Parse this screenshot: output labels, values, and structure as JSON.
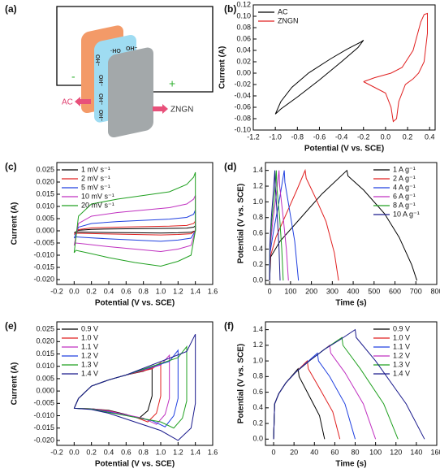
{
  "diagram": {
    "label": "(a)",
    "negative": "-",
    "positive": "+",
    "left_electrode": "AC",
    "right_electrode": "ZNGN",
    "ions": [
      "OH⁻",
      "·HO",
      "OH⁻",
      "OH⁻",
      "OH⁻",
      "OH⁻"
    ]
  },
  "chart_data": [
    {
      "type": "line",
      "label": "(b)",
      "xlabel": "Potential (V vs. SCE)",
      "ylabel": "Current (A)",
      "legend": "upper left",
      "xlim": [
        -1.2,
        0.45
      ],
      "ylim": [
        -0.1,
        0.12
      ],
      "xticks": [
        -1.2,
        {
          "value": -1,
          "label": "-1.0"
        },
        -0.8,
        -0.6,
        -0.4,
        -0.2,
        {
          "value": 0,
          "label": "0.0"
        },
        0.2,
        0.4
      ],
      "yticks": [
        {
          "value": -0.1,
          "label": "-0.10"
        },
        -0.08,
        -0.06,
        -0.04,
        -0.02,
        {
          "value": 0,
          "label": "0.00"
        },
        0.02,
        0.04,
        0.06,
        0.08,
        {
          "value": 0.1,
          "label": "0.10"
        },
        0.12
      ],
      "series": [
        {
          "name": "AC",
          "color": "#000000",
          "x": [
            -1.0,
            -0.95,
            -0.85,
            -0.7,
            -0.5,
            -0.35,
            -0.22,
            -0.2,
            -0.25,
            -0.4,
            -0.6,
            -0.8,
            -0.95,
            -1.0
          ],
          "values": [
            -0.072,
            -0.05,
            -0.025,
            0.0,
            0.025,
            0.042,
            0.055,
            0.058,
            0.045,
            0.02,
            -0.012,
            -0.042,
            -0.063,
            -0.072
          ]
        },
        {
          "name": "ZNGN",
          "color": "#e02020",
          "x": [
            -0.2,
            -0.1,
            0.05,
            0.15,
            0.25,
            0.32,
            0.35,
            0.38,
            0.38,
            0.35,
            0.3,
            0.25,
            0.18,
            0.12,
            0.1,
            0.07,
            0.05,
            0.0,
            -0.1,
            -0.2
          ],
          "values": [
            -0.015,
            -0.008,
            0.0,
            0.01,
            0.04,
            0.09,
            0.103,
            0.105,
            0.07,
            0.02,
            0.0,
            -0.01,
            -0.02,
            -0.05,
            -0.08,
            -0.085,
            -0.06,
            -0.035,
            -0.025,
            -0.015
          ]
        }
      ]
    },
    {
      "type": "line",
      "label": "(c)",
      "xlabel": "Potential (V vs. SCE)",
      "ylabel": "Current (A)",
      "legend": "upper left",
      "xlim": [
        -0.2,
        1.6
      ],
      "ylim": [
        -0.022,
        0.028
      ],
      "xticks": [
        -0.2,
        {
          "value": 0,
          "label": "0.0"
        },
        0.2,
        0.4,
        0.6,
        0.8,
        {
          "value": 1,
          "label": "1.0"
        },
        1.2,
        1.4,
        1.6
      ],
      "yticks": [
        {
          "value": -0.02,
          "label": "-0.020"
        },
        -0.015,
        {
          "value": -0.01,
          "label": "-0.010"
        },
        -0.005,
        {
          "value": 0,
          "label": "0.000"
        },
        0.005,
        {
          "value": 0.01,
          "label": "0.010"
        },
        0.015,
        {
          "value": 0.02,
          "label": "0.020"
        },
        0.025
      ],
      "series": [
        {
          "name": "1  mV s⁻¹",
          "color": "#000000",
          "x": [
            0,
            0.05,
            0.2,
            0.5,
            0.8,
            1.1,
            1.3,
            1.38,
            1.4,
            1.4,
            1.35,
            1.2,
            1.0,
            0.7,
            0.4,
            0.15,
            0.02,
            0
          ],
          "values": [
            -0.0008,
            0.0002,
            0.0006,
            0.0008,
            0.0009,
            0.001,
            0.0011,
            0.0015,
            0.002,
            0,
            -0.0006,
            -0.0008,
            -0.0009,
            -0.0008,
            -0.0007,
            -0.0006,
            -0.0005,
            -0.0008
          ]
        },
        {
          "name": "2  mV s⁻¹",
          "color": "#e02020",
          "x": [
            0,
            0.05,
            0.2,
            0.5,
            0.8,
            1.1,
            1.3,
            1.38,
            1.4,
            1.4,
            1.35,
            1.2,
            1.0,
            0.7,
            0.4,
            0.15,
            0.02,
            0
          ],
          "values": [
            -0.0015,
            0.0005,
            0.0012,
            0.0015,
            0.0017,
            0.0019,
            0.0022,
            0.003,
            0.004,
            0,
            -0.0012,
            -0.0015,
            -0.0017,
            -0.0015,
            -0.0013,
            -0.0011,
            -0.001,
            -0.0015
          ]
        },
        {
          "name": "5  mV s⁻¹",
          "color": "#2040e0",
          "x": [
            0,
            0.05,
            0.2,
            0.5,
            0.8,
            1.1,
            1.3,
            1.38,
            1.4,
            1.4,
            1.35,
            1.2,
            1.0,
            0.7,
            0.4,
            0.15,
            0.02,
            0
          ],
          "values": [
            -0.003,
            0.0015,
            0.003,
            0.0038,
            0.0043,
            0.0048,
            0.0055,
            0.0068,
            0.0085,
            0,
            -0.003,
            -0.0038,
            -0.0043,
            -0.0038,
            -0.0033,
            -0.0028,
            -0.0025,
            -0.003
          ]
        },
        {
          "name": "10  mV s⁻¹",
          "color": "#c030c0",
          "x": [
            0,
            0.05,
            0.2,
            0.5,
            0.8,
            1.1,
            1.3,
            1.38,
            1.4,
            1.4,
            1.35,
            1.2,
            1.0,
            0.7,
            0.4,
            0.15,
            0.02,
            0
          ],
          "values": [
            -0.006,
            0.003,
            0.006,
            0.0075,
            0.0085,
            0.0095,
            0.011,
            0.013,
            0.0145,
            0,
            -0.006,
            -0.0075,
            -0.0085,
            -0.0075,
            -0.0065,
            -0.0055,
            -0.005,
            -0.006
          ]
        },
        {
          "name": "20  mV s⁻¹",
          "color": "#20a020",
          "x": [
            0,
            0.05,
            0.2,
            0.5,
            0.8,
            1.1,
            1.3,
            1.38,
            1.4,
            1.4,
            1.35,
            1.2,
            1.0,
            0.7,
            0.4,
            0.15,
            0.02,
            0
          ],
          "values": [
            -0.009,
            0.006,
            0.011,
            0.013,
            0.0145,
            0.016,
            0.019,
            0.022,
            0.024,
            0,
            -0.01,
            -0.0125,
            -0.0145,
            -0.013,
            -0.011,
            -0.009,
            -0.008,
            -0.009
          ]
        }
      ]
    },
    {
      "type": "line",
      "label": "(d)",
      "xlabel": "Time (s)",
      "ylabel": "Potential (V vs. SCE)",
      "legend": "upper right",
      "xlim": [
        -20,
        800
      ],
      "ylim": [
        -0.05,
        1.5
      ],
      "xticks": [
        0,
        100,
        200,
        300,
        400,
        500,
        600,
        700,
        800
      ],
      "yticks": [
        {
          "value": 0,
          "label": "0.0"
        },
        0.2,
        0.4,
        0.6,
        0.8,
        {
          "value": 1,
          "label": "1.0"
        },
        1.2,
        1.4
      ],
      "series": [
        {
          "name": "1 A g⁻¹",
          "color": "#000000",
          "x": [
            0,
            5,
            50,
            150,
            250,
            370,
            375,
            450,
            550,
            620,
            680,
            705
          ],
          "values": [
            0,
            0.3,
            0.5,
            0.8,
            1.1,
            1.4,
            1.33,
            1.15,
            0.85,
            0.55,
            0.2,
            0
          ]
        },
        {
          "name": "2 A g⁻¹",
          "color": "#e02020",
          "x": [
            0,
            3,
            30,
            80,
            130,
            170,
            175,
            220,
            270,
            310,
            330
          ],
          "values": [
            0,
            0.3,
            0.55,
            0.85,
            1.15,
            1.4,
            1.3,
            1.05,
            0.75,
            0.35,
            0
          ]
        },
        {
          "name": "4 A g⁻¹",
          "color": "#2040e0",
          "x": [
            0,
            2,
            20,
            45,
            70,
            73,
            95,
            120,
            138
          ],
          "values": [
            0,
            0.35,
            0.65,
            1.0,
            1.4,
            1.25,
            0.9,
            0.5,
            0
          ]
        },
        {
          "name": "6 A g⁻¹",
          "color": "#c030c0",
          "x": [
            0,
            2,
            15,
            30,
            45,
            48,
            65,
            80,
            90
          ],
          "values": [
            0,
            0.4,
            0.75,
            1.05,
            1.4,
            1.2,
            0.8,
            0.4,
            0
          ]
        },
        {
          "name": "8 A g⁻¹",
          "color": "#20a020",
          "x": [
            0,
            1,
            10,
            22,
            32,
            34,
            48,
            58,
            65
          ],
          "values": [
            0,
            0.4,
            0.75,
            1.05,
            1.4,
            1.2,
            0.8,
            0.4,
            0
          ]
        },
        {
          "name": "10 A g⁻¹",
          "color": "#1a1a8c",
          "x": [
            0,
            1,
            8,
            17,
            25,
            27,
            37,
            45,
            50
          ],
          "values": [
            0,
            0.45,
            0.8,
            1.1,
            1.4,
            1.2,
            0.8,
            0.4,
            0
          ]
        }
      ]
    },
    {
      "type": "line",
      "label": "(e)",
      "xlabel": "Potential (V vs. SCE)",
      "ylabel": "Current (A)",
      "legend": "upper left",
      "xlim": [
        -0.2,
        1.6
      ],
      "ylim": [
        -0.022,
        0.028
      ],
      "xticks": [
        -0.2,
        {
          "value": 0,
          "label": "0.0"
        },
        0.2,
        0.4,
        0.6,
        0.8,
        {
          "value": 1,
          "label": "1.0"
        },
        1.2,
        1.4,
        1.6
      ],
      "yticks": [
        {
          "value": -0.02,
          "label": "-0.020"
        },
        -0.015,
        {
          "value": -0.01,
          "label": "-0.010"
        },
        -0.005,
        {
          "value": 0,
          "label": "0.000"
        },
        0.005,
        {
          "value": 0.01,
          "label": "0.010"
        },
        0.015,
        {
          "value": 0.02,
          "label": "0.020"
        },
        0.025
      ],
      "series": [
        {
          "name": "0.9 V",
          "color": "#000000",
          "x": [
            0,
            0.05,
            0.2,
            0.4,
            0.6,
            0.8,
            0.9,
            0.9,
            0.85,
            0.75,
            0.6,
            0.4,
            0.2,
            0
          ],
          "values": [
            -0.007,
            -0.003,
            0.002,
            0.0045,
            0.0065,
            0.008,
            0.0095,
            -0.002,
            -0.008,
            -0.011,
            -0.0095,
            -0.0078,
            -0.0072,
            -0.007
          ]
        },
        {
          "name": "1.0 V",
          "color": "#e02020",
          "x": [
            0,
            0.05,
            0.2,
            0.4,
            0.6,
            0.9,
            1.0,
            1.0,
            0.95,
            0.85,
            0.7,
            0.4,
            0.2,
            0
          ],
          "values": [
            -0.007,
            -0.003,
            0.002,
            0.0045,
            0.0065,
            0.009,
            0.0115,
            -0.002,
            -0.009,
            -0.0125,
            -0.0105,
            -0.008,
            -0.0072,
            -0.007
          ]
        },
        {
          "name": "1.1 V",
          "color": "#c030c0",
          "x": [
            0,
            0.05,
            0.2,
            0.4,
            0.6,
            1.0,
            1.1,
            1.1,
            1.05,
            0.95,
            0.8,
            0.4,
            0.2,
            0
          ],
          "values": [
            -0.007,
            -0.003,
            0.002,
            0.0045,
            0.0065,
            0.0105,
            0.0145,
            -0.003,
            -0.0095,
            -0.0135,
            -0.011,
            -0.0082,
            -0.0072,
            -0.007
          ]
        },
        {
          "name": "1.2 V",
          "color": "#2040e0",
          "x": [
            0,
            0.05,
            0.2,
            0.4,
            0.6,
            1.1,
            1.2,
            1.2,
            1.15,
            1.05,
            0.9,
            0.4,
            0.2,
            0
          ],
          "values": [
            -0.007,
            -0.003,
            0.002,
            0.0045,
            0.0065,
            0.012,
            0.0165,
            -0.003,
            -0.01,
            -0.0145,
            -0.012,
            -0.0085,
            -0.0073,
            -0.007
          ]
        },
        {
          "name": "1.3 V",
          "color": "#20a020",
          "x": [
            0,
            0.05,
            0.2,
            0.4,
            0.6,
            1.2,
            1.3,
            1.3,
            1.25,
            1.15,
            1.0,
            0.4,
            0.2,
            0
          ],
          "values": [
            -0.007,
            -0.003,
            0.002,
            0.0045,
            0.0065,
            0.0135,
            0.018,
            -0.004,
            -0.011,
            -0.015,
            -0.0125,
            -0.0087,
            -0.0073,
            -0.007
          ]
        },
        {
          "name": "1.4 V",
          "color": "#1a1a8c",
          "x": [
            0,
            0.05,
            0.2,
            0.4,
            0.6,
            1.3,
            1.4,
            1.4,
            1.35,
            1.2,
            1.0,
            0.4,
            0.2,
            0
          ],
          "values": [
            -0.007,
            -0.003,
            0.002,
            0.0045,
            0.0065,
            0.016,
            0.023,
            -0.005,
            -0.015,
            -0.02,
            -0.016,
            -0.009,
            -0.0075,
            -0.007
          ]
        }
      ]
    },
    {
      "type": "line",
      "label": "(f)",
      "xlabel": "Time (s)",
      "ylabel": "Potential (V vs. SCE)",
      "legend": "upper right",
      "xlim": [
        -8,
        160
      ],
      "ylim": [
        -0.08,
        1.5
      ],
      "xticks": [
        0,
        20,
        40,
        60,
        80,
        100,
        120,
        140,
        160
      ],
      "yticks": [
        {
          "value": 0,
          "label": "0.0"
        },
        0.2,
        0.4,
        0.6,
        0.8,
        {
          "value": 1,
          "label": "1.0"
        },
        1.2,
        1.4
      ],
      "series": [
        {
          "name": "0.9 V",
          "color": "#000000",
          "x": [
            0,
            1,
            5,
            12,
            24,
            25,
            35,
            45,
            50
          ],
          "values": [
            0,
            0.45,
            0.58,
            0.72,
            0.9,
            0.8,
            0.55,
            0.3,
            0
          ]
        },
        {
          "name": "1.0 V",
          "color": "#e02020",
          "x": [
            0,
            1,
            5,
            12,
            22,
            33,
            34,
            45,
            58,
            65
          ],
          "values": [
            0,
            0.45,
            0.58,
            0.72,
            0.86,
            1.0,
            0.9,
            0.65,
            0.35,
            0
          ]
        },
        {
          "name": "1.1 V",
          "color": "#2040e0",
          "x": [
            0,
            1,
            5,
            12,
            22,
            43,
            44,
            55,
            70,
            80
          ],
          "values": [
            0,
            0.45,
            0.58,
            0.72,
            0.86,
            1.1,
            1.0,
            0.8,
            0.45,
            0
          ]
        },
        {
          "name": "1.2 V",
          "color": "#c030c0",
          "x": [
            0,
            1,
            5,
            12,
            22,
            35,
            55,
            56,
            70,
            88,
            100
          ],
          "values": [
            0,
            0.45,
            0.58,
            0.72,
            0.86,
            1.0,
            1.2,
            1.1,
            0.85,
            0.45,
            0
          ]
        },
        {
          "name": "1.3 V",
          "color": "#20a020",
          "x": [
            0,
            1,
            5,
            12,
            22,
            35,
            50,
            67,
            68,
            85,
            108,
            122
          ],
          "values": [
            0,
            0.45,
            0.58,
            0.72,
            0.86,
            1.0,
            1.15,
            1.3,
            1.2,
            0.9,
            0.45,
            0
          ]
        },
        {
          "name": "1.4 V",
          "color": "#1a1a8c",
          "x": [
            0,
            1,
            5,
            12,
            22,
            35,
            50,
            65,
            80,
            81,
            100,
            130,
            148
          ],
          "values": [
            0,
            0.45,
            0.58,
            0.72,
            0.86,
            1.0,
            1.15,
            1.27,
            1.4,
            1.3,
            1.0,
            0.45,
            0
          ]
        }
      ]
    }
  ]
}
